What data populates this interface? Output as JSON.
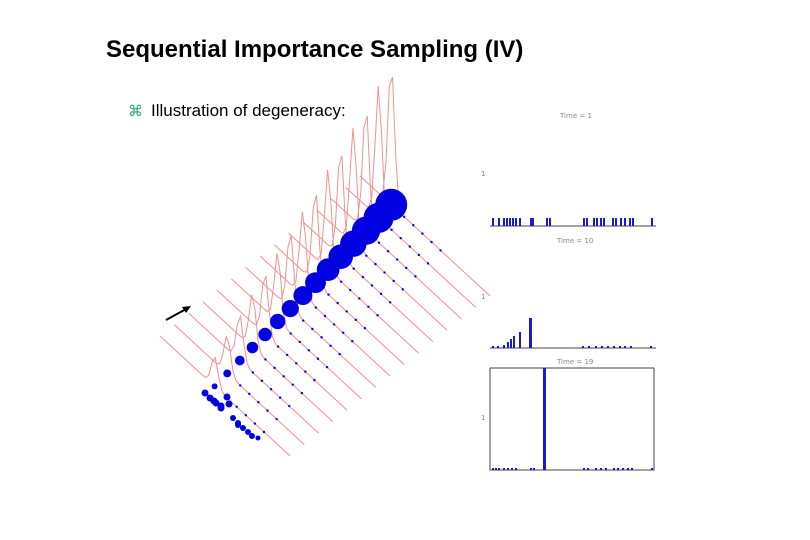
{
  "slide": {
    "title": "Sequential Importance Sampling (IV)",
    "bullet_icon": "command-icon",
    "bullet_text": "Illustration of degeneracy:"
  },
  "figure_3d": {
    "density_color": "#f09090",
    "particle_color": "#0000e0",
    "arrow_icon": "time-direction-arrow-icon"
  },
  "panels": [
    {
      "label": "Time = 1",
      "y_tick": "1"
    },
    {
      "label": "Time = 10",
      "y_tick": "1"
    },
    {
      "label": "Time = 19",
      "y_tick": "1"
    }
  ],
  "colors": {
    "bars": "#1a1acc",
    "axis": "#444444"
  }
}
